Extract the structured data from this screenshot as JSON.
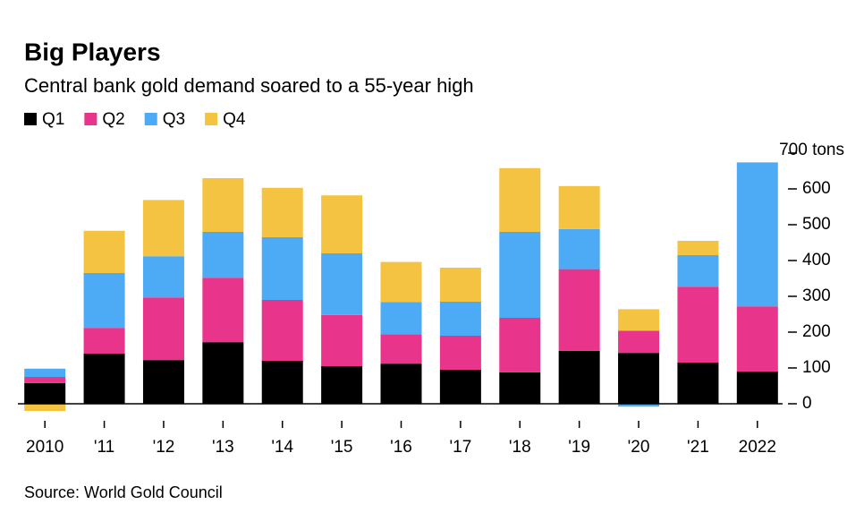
{
  "chart_data": {
    "type": "stacked_bar",
    "title": "Big Players",
    "subtitle": "Central bank gold demand soared to a 55-year high",
    "source": "Source: World Gold Council",
    "categories": [
      "2010",
      "'11",
      "'12",
      "'13",
      "'14",
      "'15",
      "'16",
      "'17",
      "'18",
      "'19",
      "'20",
      "'21",
      "2022"
    ],
    "series": [
      {
        "name": "Q1",
        "color": "#000000",
        "values": [
          58,
          140,
          122,
          172,
          120,
          105,
          112,
          95,
          88,
          148,
          142,
          115,
          90
        ]
      },
      {
        "name": "Q2",
        "color": "#e8348a",
        "values": [
          17,
          72,
          175,
          180,
          170,
          143,
          82,
          95,
          152,
          228,
          62,
          212,
          182
        ]
      },
      {
        "name": "Q3",
        "color": "#4dabf5",
        "values": [
          23,
          153,
          115,
          128,
          175,
          172,
          90,
          95,
          240,
          112,
          -8,
          88,
          402
        ]
      },
      {
        "name": "Q4",
        "color": "#f5c342",
        "values": [
          -20,
          118,
          157,
          150,
          138,
          162,
          112,
          95,
          178,
          120,
          60,
          40,
          null
        ]
      }
    ],
    "ylim": [
      -20,
      700
    ],
    "yticks": [
      0,
      100,
      200,
      300,
      400,
      500,
      600,
      {
        "value": 700,
        "label": "700 tons"
      }
    ],
    "y_axis_side": "right"
  }
}
